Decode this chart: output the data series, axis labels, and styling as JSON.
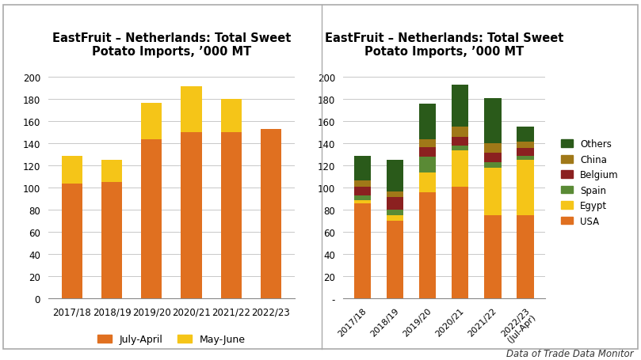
{
  "title": "EastFruit – Netherlands: Total Sweet\nPotato Imports, ’000 MT",
  "categories_left": [
    "2017/18",
    "2018/19",
    "2019/20",
    "2020/21",
    "2021/22",
    "2022/23"
  ],
  "categories_right": [
    "2017/18",
    "2018/19",
    "2019/20",
    "2020/21",
    "2021/22",
    "2022/23\n(Jul-Apr)"
  ],
  "left_july_april": [
    104,
    105,
    144,
    150,
    150,
    153
  ],
  "left_may_june": [
    25,
    20,
    33,
    42,
    30,
    0
  ],
  "right_usa": [
    86,
    70,
    96,
    101,
    75,
    75
  ],
  "right_egypt": [
    3,
    5,
    18,
    33,
    43,
    50
  ],
  "right_spain": [
    4,
    5,
    14,
    4,
    5,
    4
  ],
  "right_belgium": [
    8,
    12,
    9,
    8,
    9,
    7
  ],
  "right_china": [
    6,
    5,
    7,
    9,
    8,
    6
  ],
  "right_others": [
    22,
    28,
    32,
    38,
    41,
    13
  ],
  "color_july_april": "#E07020",
  "color_may_june": "#F5C518",
  "color_usa": "#E07020",
  "color_egypt": "#F5C518",
  "color_spain": "#5A8A35",
  "color_belgium": "#8B2020",
  "color_china": "#A07818",
  "color_others": "#2A5A1A",
  "ylim_left": [
    0,
    210
  ],
  "ylim_right": [
    0,
    210
  ],
  "yticks_left": [
    0,
    20,
    40,
    60,
    80,
    100,
    120,
    140,
    160,
    180,
    200
  ],
  "yticks_right": [
    0,
    20,
    40,
    60,
    80,
    100,
    120,
    140,
    160,
    180,
    200
  ],
  "bg_color": "#FFFFFF",
  "plot_bg": "#FFFFFF",
  "grid_color": "#C8C8C8",
  "border_color": "#AAAAAA",
  "footer_text": "Data of Trade Data Monitor"
}
